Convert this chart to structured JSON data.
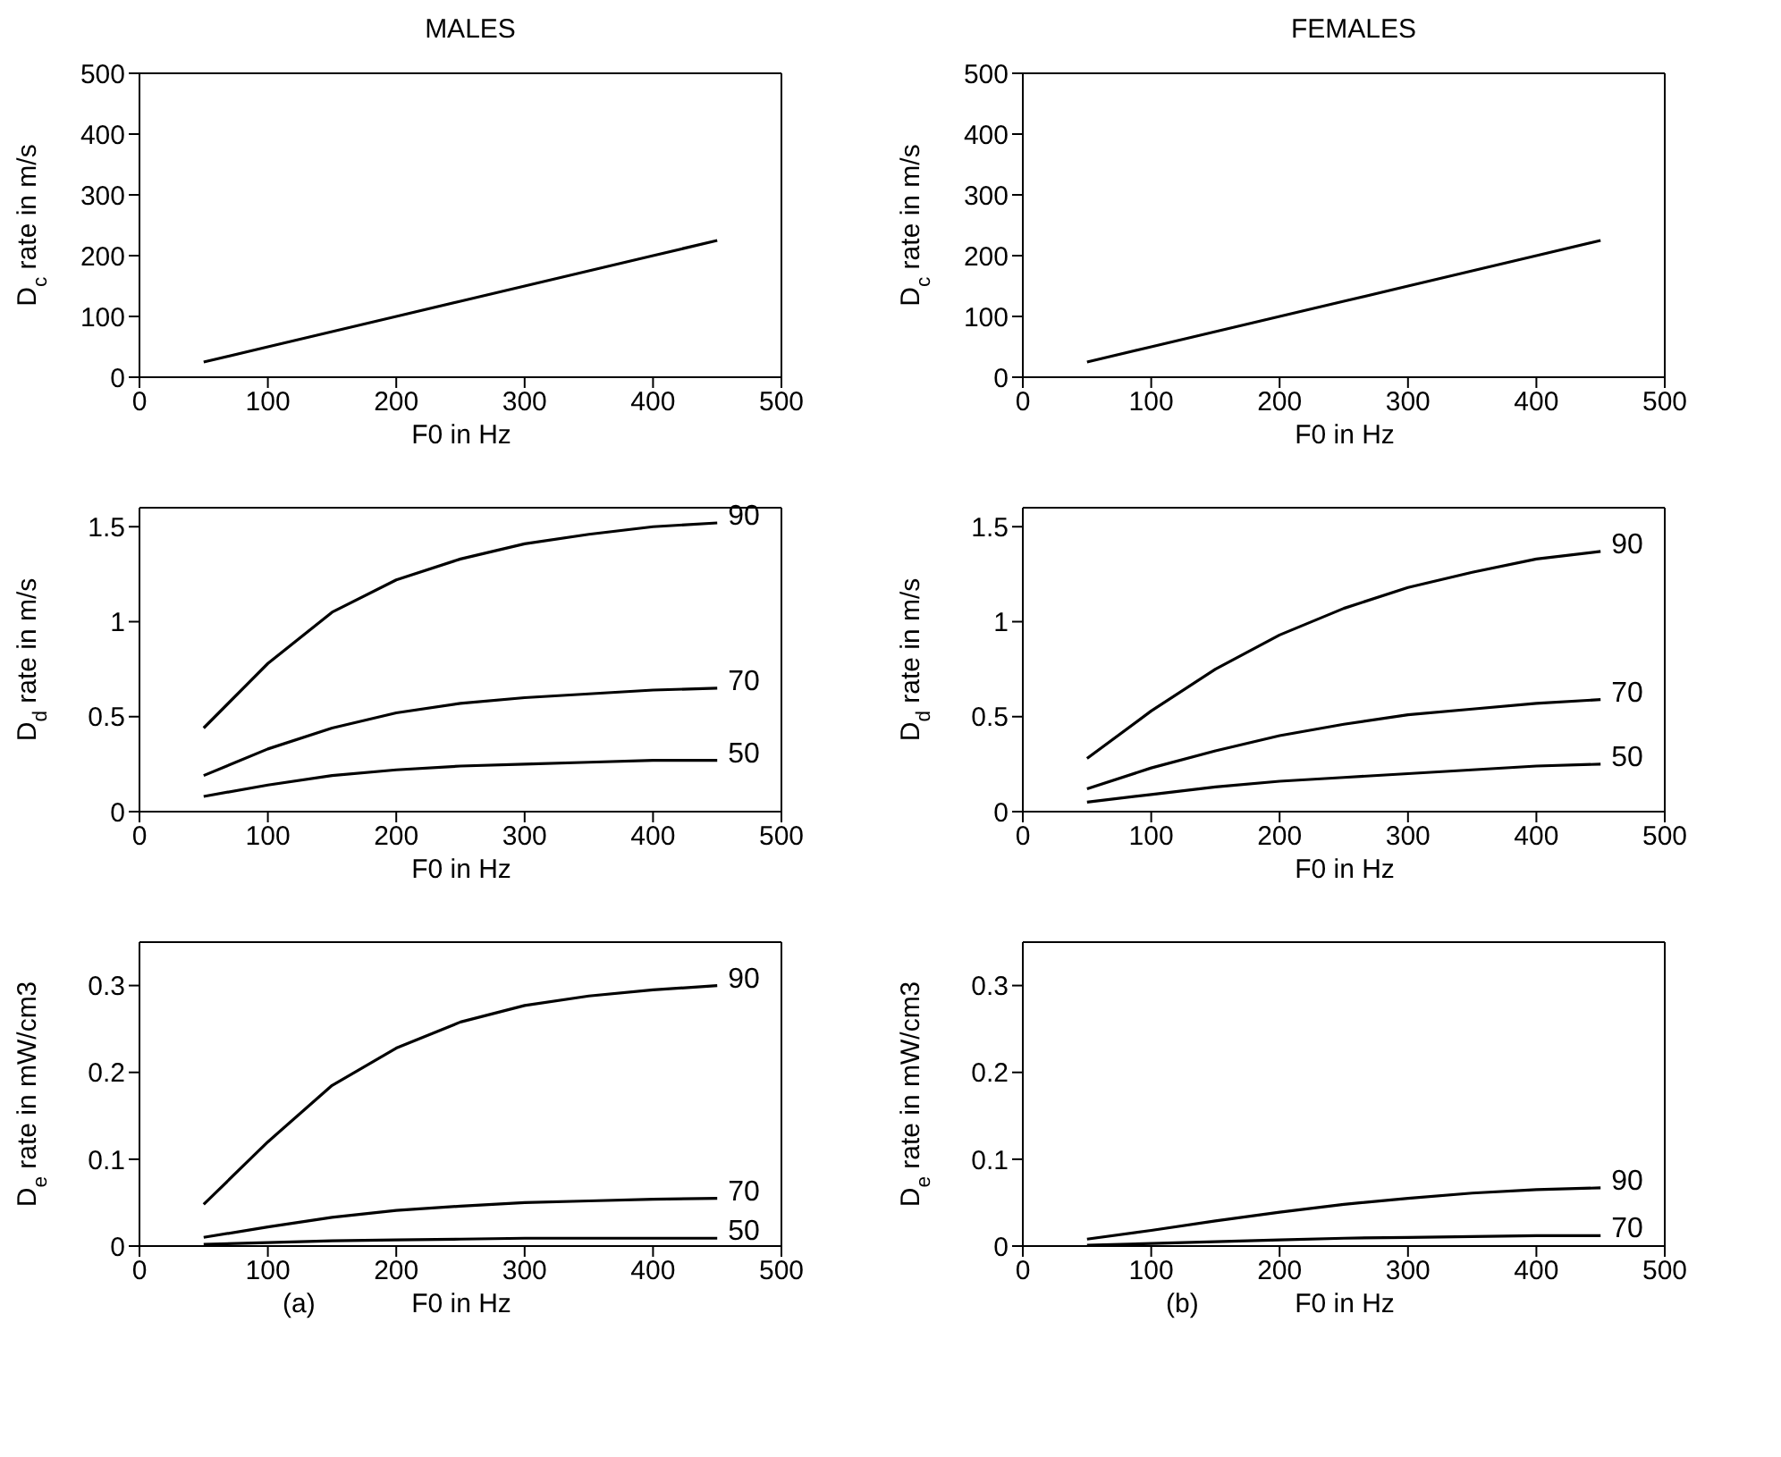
{
  "chart_data": [
    {
      "type": "line",
      "title": "MALES",
      "xlabel": "F0 in Hz",
      "ylabel": "D$_{c}$ rate in m/s",
      "x": [
        50,
        100,
        150,
        200,
        250,
        300,
        350,
        400,
        450
      ],
      "xlim": [
        0,
        500
      ],
      "xticks": [
        0,
        100,
        200,
        300,
        400,
        500
      ],
      "ylim": [
        0,
        500
      ],
      "yticks": [
        0,
        100,
        200,
        300,
        400,
        500
      ],
      "grid": false,
      "legend": false,
      "marker": "none",
      "line_style": "solid",
      "series": [
        {
          "color": "#000000",
          "values": [
            25,
            50,
            75,
            100,
            125,
            150,
            175,
            200,
            225
          ]
        }
      ]
    },
    {
      "type": "line",
      "title": "FEMALES",
      "xlabel": "F0 in Hz",
      "ylabel": "D$_{c}$ rate in m/s",
      "x": [
        50,
        100,
        150,
        200,
        250,
        300,
        350,
        400,
        450
      ],
      "xlim": [
        0,
        500
      ],
      "xticks": [
        0,
        100,
        200,
        300,
        400,
        500
      ],
      "ylim": [
        0,
        500
      ],
      "yticks": [
        0,
        100,
        200,
        300,
        400,
        500
      ],
      "grid": false,
      "legend": false,
      "marker": "none",
      "line_style": "solid",
      "series": [
        {
          "color": "#000000",
          "values": [
            25,
            50,
            75,
            100,
            125,
            150,
            175,
            200,
            225
          ]
        }
      ]
    },
    {
      "type": "line",
      "xlabel": "F0 in Hz",
      "ylabel": "D$_{d}$ rate in m/s",
      "x": [
        50,
        100,
        150,
        200,
        250,
        300,
        350,
        400,
        450
      ],
      "xlim": [
        0,
        500
      ],
      "xticks": [
        0,
        100,
        200,
        300,
        400,
        500
      ],
      "ylim": [
        0,
        1.6
      ],
      "yticks": [
        0,
        0.5,
        1,
        1.5
      ],
      "grid": false,
      "legend": false,
      "marker": "none",
      "line_style": "solid",
      "series": [
        {
          "name": "90",
          "color": "#000000",
          "values": [
            0.44,
            0.78,
            1.05,
            1.22,
            1.33,
            1.41,
            1.46,
            1.5,
            1.52
          ]
        },
        {
          "name": "70",
          "color": "#000000",
          "values": [
            0.19,
            0.33,
            0.44,
            0.52,
            0.57,
            0.6,
            0.62,
            0.64,
            0.65
          ]
        },
        {
          "name": "50",
          "color": "#000000",
          "values": [
            0.08,
            0.14,
            0.19,
            0.22,
            0.24,
            0.25,
            0.26,
            0.27,
            0.27
          ]
        }
      ]
    },
    {
      "type": "line",
      "xlabel": "F0 in Hz",
      "ylabel": "D$_{d}$ rate in m/s",
      "x": [
        50,
        100,
        150,
        200,
        250,
        300,
        350,
        400,
        450
      ],
      "xlim": [
        0,
        500
      ],
      "xticks": [
        0,
        100,
        200,
        300,
        400,
        500
      ],
      "ylim": [
        0,
        1.6
      ],
      "yticks": [
        0,
        0.5,
        1,
        1.5
      ],
      "grid": false,
      "legend": false,
      "marker": "none",
      "line_style": "solid",
      "series": [
        {
          "name": "90",
          "color": "#000000",
          "values": [
            0.28,
            0.53,
            0.75,
            0.93,
            1.07,
            1.18,
            1.26,
            1.33,
            1.37
          ]
        },
        {
          "name": "70",
          "color": "#000000",
          "values": [
            0.12,
            0.23,
            0.32,
            0.4,
            0.46,
            0.51,
            0.54,
            0.57,
            0.59
          ]
        },
        {
          "name": "50",
          "color": "#000000",
          "values": [
            0.05,
            0.09,
            0.13,
            0.16,
            0.18,
            0.2,
            0.22,
            0.24,
            0.25
          ]
        }
      ]
    },
    {
      "type": "line",
      "xlabel": "F0 in Hz",
      "ylabel": "D$_{e}$ rate in mW/cm3",
      "annotations": [
        "(a)"
      ],
      "x": [
        50,
        100,
        150,
        200,
        250,
        300,
        350,
        400,
        450
      ],
      "xlim": [
        0,
        500
      ],
      "xticks": [
        0,
        100,
        200,
        300,
        400,
        500
      ],
      "ylim": [
        0,
        0.35
      ],
      "yticks": [
        0,
        0.1,
        0.2,
        0.3
      ],
      "grid": false,
      "legend": false,
      "marker": "none",
      "line_style": "solid",
      "series": [
        {
          "name": "90",
          "color": "#000000",
          "values": [
            0.048,
            0.12,
            0.185,
            0.228,
            0.258,
            0.277,
            0.288,
            0.295,
            0.3
          ]
        },
        {
          "name": "70",
          "color": "#000000",
          "values": [
            0.01,
            0.022,
            0.033,
            0.041,
            0.046,
            0.05,
            0.052,
            0.054,
            0.055
          ]
        },
        {
          "name": "50",
          "color": "#000000",
          "values": [
            0.002,
            0.004,
            0.006,
            0.007,
            0.008,
            0.009,
            0.009,
            0.009,
            0.009
          ]
        }
      ]
    },
    {
      "type": "line",
      "xlabel": "F0 in Hz",
      "ylabel": "D$_{e}$ rate in mW/cm3",
      "annotations": [
        "(b)"
      ],
      "x": [
        50,
        100,
        150,
        200,
        250,
        300,
        350,
        400,
        450
      ],
      "xlim": [
        0,
        500
      ],
      "xticks": [
        0,
        100,
        200,
        300,
        400,
        500
      ],
      "ylim": [
        0,
        0.35
      ],
      "yticks": [
        0,
        0.1,
        0.2,
        0.3
      ],
      "grid": false,
      "legend": false,
      "marker": "none",
      "line_style": "solid",
      "series": [
        {
          "name": "90",
          "color": "#000000",
          "values": [
            0.008,
            0.018,
            0.029,
            0.039,
            0.048,
            0.055,
            0.061,
            0.065,
            0.067
          ]
        },
        {
          "name": "70",
          "color": "#000000",
          "values": [
            0.001,
            0.003,
            0.005,
            0.007,
            0.009,
            0.01,
            0.011,
            0.012,
            0.012
          ]
        }
      ]
    }
  ]
}
